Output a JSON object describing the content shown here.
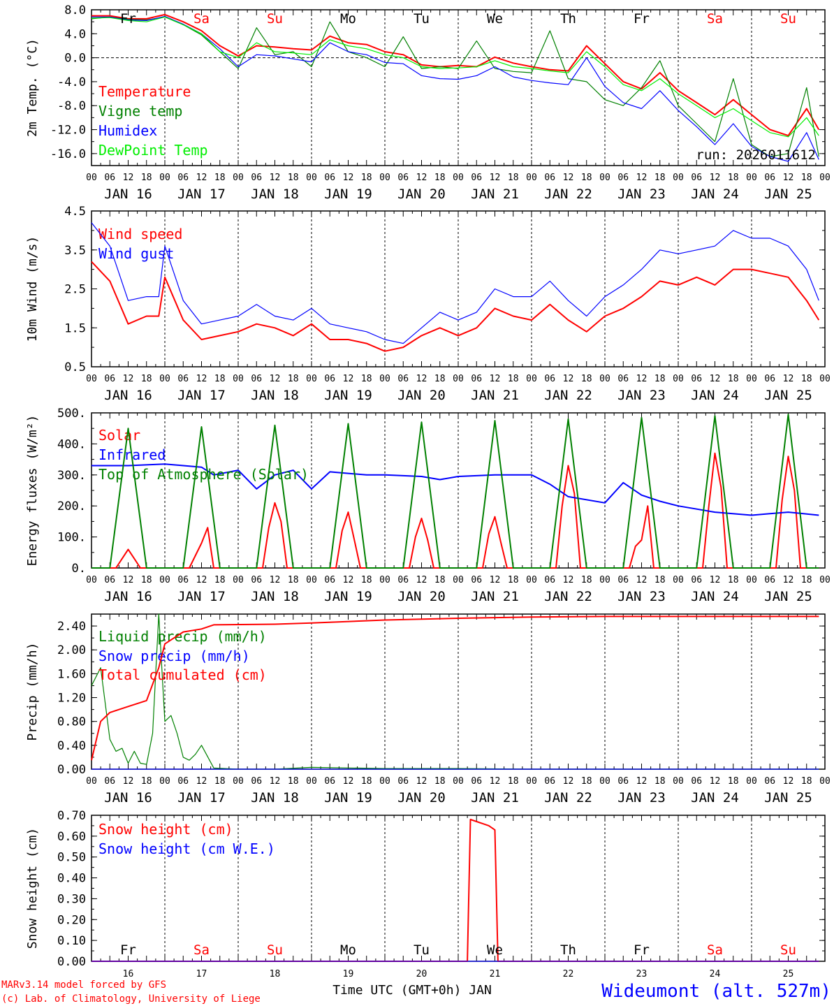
{
  "chart_data": [
    {
      "type": "line",
      "panel": "temperature",
      "ylabel": "2m Temp. (°C)",
      "ylim": [
        -18,
        8
      ],
      "yticks": [
        8,
        4,
        0,
        -4,
        -8,
        -12,
        -16
      ],
      "ytick_labels": [
        "8.0",
        "4.0",
        "0.0",
        "-4.0",
        "-8.0",
        "-12.0",
        "-16.0"
      ],
      "run_label": "run: 2026011612",
      "day_labels": [
        "Fr",
        "Sa",
        "Su",
        "Mo",
        "Tu",
        "We",
        "Th",
        "Fr",
        "Sa",
        "Su"
      ],
      "series": [
        {
          "name": "Temperature",
          "color": "#ff0000",
          "x": [
            0,
            6,
            12,
            18,
            24,
            30,
            36,
            42,
            48,
            54,
            60,
            66,
            72,
            78,
            84,
            90,
            96,
            102,
            108,
            114,
            120,
            126,
            132,
            138,
            144,
            150,
            156,
            162,
            168,
            174,
            180,
            186,
            192,
            198,
            204,
            210,
            216,
            222,
            228,
            234,
            238
          ],
          "y": [
            7.0,
            7.0,
            6.5,
            6.5,
            7.2,
            6.0,
            4.5,
            2.0,
            0.3,
            2.0,
            1.8,
            1.5,
            1.3,
            3.6,
            2.5,
            2.2,
            1.0,
            0.5,
            -1.2,
            -1.5,
            -1.3,
            -1.5,
            0.1,
            -0.9,
            -1.5,
            -2.0,
            -2.2,
            2.0,
            -1.0,
            -4.0,
            -5.2,
            -2.5,
            -5.5,
            -7.5,
            -9.5,
            -7.0,
            -9.5,
            -12.0,
            -13.0,
            -8.5,
            -12.0
          ]
        },
        {
          "name": "Vigne temp",
          "color": "#008000",
          "x": [
            0,
            6,
            12,
            18,
            24,
            30,
            36,
            42,
            48,
            54,
            60,
            66,
            72,
            78,
            84,
            90,
            96,
            102,
            108,
            114,
            120,
            126,
            132,
            138,
            144,
            150,
            156,
            162,
            168,
            174,
            180,
            186,
            192,
            198,
            204,
            210,
            216,
            222,
            228,
            234,
            238
          ],
          "y": [
            6.5,
            6.8,
            6.4,
            6.3,
            6.8,
            5.5,
            3.8,
            1.0,
            -1.8,
            5.0,
            0.5,
            1.0,
            -1.5,
            6.0,
            1.0,
            0.0,
            -1.5,
            3.5,
            -1.8,
            -1.5,
            -1.8,
            2.8,
            -1.8,
            -2.3,
            -2.5,
            4.5,
            -3.5,
            -4.0,
            -7.0,
            -8.0,
            -5.0,
            -0.5,
            -8.0,
            -11.0,
            -14.0,
            -3.5,
            -14.5,
            -16.5,
            -16.0,
            -5.0,
            -16.5
          ]
        },
        {
          "name": "Humidex",
          "color": "#0000ff",
          "x": [
            0,
            6,
            12,
            18,
            24,
            30,
            36,
            42,
            48,
            54,
            60,
            66,
            72,
            78,
            84,
            90,
            96,
            102,
            108,
            114,
            120,
            126,
            132,
            138,
            144,
            150,
            156,
            162,
            168,
            174,
            180,
            186,
            192,
            198,
            204,
            210,
            216,
            222,
            228,
            234,
            238
          ],
          "y": [
            6.8,
            6.8,
            6.3,
            6.2,
            6.9,
            5.6,
            4.0,
            1.5,
            -1.5,
            0.5,
            0.3,
            -0.2,
            -0.7,
            2.5,
            1.0,
            0.5,
            -0.8,
            -1.0,
            -3.0,
            -3.5,
            -3.6,
            -3.0,
            -1.5,
            -3.2,
            -3.8,
            -4.2,
            -4.5,
            0.0,
            -4.8,
            -7.5,
            -8.5,
            -5.5,
            -8.8,
            -11.5,
            -14.5,
            -11.0,
            -14.8,
            -16.5,
            -17.3,
            -12.5,
            -17.0
          ]
        },
        {
          "name": "DewPoint Temp",
          "color": "#00ee00",
          "x": [
            0,
            6,
            12,
            18,
            24,
            30,
            36,
            42,
            48,
            54,
            60,
            66,
            72,
            78,
            84,
            90,
            96,
            102,
            108,
            114,
            120,
            126,
            132,
            138,
            144,
            150,
            156,
            162,
            168,
            174,
            180,
            186,
            192,
            198,
            204,
            210,
            216,
            222,
            228,
            234,
            238
          ],
          "y": [
            6.6,
            6.7,
            6.2,
            6.0,
            6.8,
            5.5,
            4.0,
            1.0,
            0.0,
            2.5,
            1.0,
            0.8,
            0.5,
            3.0,
            2.0,
            1.5,
            0.5,
            0.0,
            -1.5,
            -1.8,
            -1.7,
            -1.5,
            -0.5,
            -1.5,
            -1.8,
            -2.2,
            -2.5,
            1.0,
            -1.5,
            -4.5,
            -5.5,
            -3.5,
            -6.0,
            -8.0,
            -10.0,
            -8.5,
            -10.5,
            -12.5,
            -13.2,
            -10.0,
            -13.0
          ]
        }
      ]
    },
    {
      "type": "line",
      "panel": "wind",
      "ylabel": "10m Wind (m/s)",
      "ylim": [
        0.5,
        4.5
      ],
      "yticks": [
        4.5,
        3.5,
        2.5,
        1.5,
        0.5
      ],
      "ytick_labels": [
        "4.5",
        "3.5",
        "2.5",
        "1.5",
        "0.5"
      ],
      "series": [
        {
          "name": "Wind speed",
          "color": "#ff0000",
          "x": [
            0,
            6,
            12,
            18,
            22,
            24,
            30,
            36,
            42,
            48,
            54,
            60,
            66,
            72,
            78,
            84,
            90,
            96,
            102,
            108,
            114,
            120,
            126,
            132,
            138,
            144,
            150,
            156,
            162,
            168,
            174,
            180,
            186,
            192,
            198,
            204,
            210,
            216,
            222,
            228,
            234,
            238
          ],
          "y": [
            3.2,
            2.7,
            1.6,
            1.8,
            1.8,
            2.8,
            1.7,
            1.2,
            1.3,
            1.4,
            1.6,
            1.5,
            1.3,
            1.6,
            1.2,
            1.2,
            1.1,
            0.9,
            1.0,
            1.3,
            1.5,
            1.3,
            1.5,
            2.0,
            1.8,
            1.7,
            2.1,
            1.7,
            1.4,
            1.8,
            2.0,
            2.3,
            2.7,
            2.6,
            2.8,
            2.6,
            3.0,
            3.0,
            2.9,
            2.8,
            2.2,
            1.7
          ]
        },
        {
          "name": "Wind gust",
          "color": "#0000ff",
          "x": [
            0,
            6,
            12,
            18,
            22,
            24,
            30,
            36,
            42,
            48,
            54,
            60,
            66,
            72,
            78,
            84,
            90,
            96,
            102,
            108,
            114,
            120,
            126,
            132,
            138,
            144,
            150,
            156,
            162,
            168,
            174,
            180,
            186,
            192,
            198,
            204,
            210,
            216,
            222,
            228,
            234,
            238
          ],
          "y": [
            4.2,
            3.6,
            2.2,
            2.3,
            2.3,
            3.6,
            2.2,
            1.6,
            1.7,
            1.8,
            2.1,
            1.8,
            1.7,
            2.0,
            1.6,
            1.5,
            1.4,
            1.2,
            1.1,
            1.5,
            1.9,
            1.7,
            1.9,
            2.5,
            2.3,
            2.3,
            2.7,
            2.2,
            1.8,
            2.3,
            2.6,
            3.0,
            3.5,
            3.4,
            3.5,
            3.6,
            4.0,
            3.8,
            3.8,
            3.6,
            3.0,
            2.2
          ]
        }
      ]
    },
    {
      "type": "line",
      "panel": "energy",
      "ylabel": "Energy fluxes (W/m²)",
      "ylim": [
        0,
        500
      ],
      "yticks": [
        500,
        400,
        300,
        200,
        100,
        0
      ],
      "ytick_labels": [
        "500.",
        "400.",
        "300.",
        "200.",
        "100.",
        "0."
      ],
      "series": [
        {
          "name": "Solar",
          "color": "#ff0000",
          "x": [
            0,
            8,
            10,
            12,
            14,
            16,
            18,
            32,
            36,
            38,
            40,
            56,
            58,
            60,
            62,
            64,
            80,
            82,
            84,
            86,
            88,
            104,
            106,
            108,
            110,
            112,
            128,
            130,
            132,
            134,
            136,
            152,
            154,
            156,
            158,
            160,
            176,
            178,
            180,
            182,
            184,
            200,
            202,
            204,
            206,
            208,
            224,
            226,
            228,
            230,
            232,
            238
          ],
          "y": [
            0,
            0,
            30,
            60,
            30,
            0,
            0,
            0,
            80,
            130,
            0,
            0,
            130,
            210,
            150,
            0,
            0,
            120,
            180,
            90,
            0,
            0,
            100,
            160,
            90,
            0,
            0,
            110,
            165,
            80,
            0,
            0,
            200,
            330,
            240,
            0,
            0,
            70,
            90,
            200,
            0,
            0,
            200,
            370,
            260,
            0,
            0,
            220,
            360,
            250,
            0,
            0
          ]
        },
        {
          "name": "Infrared",
          "color": "#0000ff",
          "x": [
            0,
            12,
            24,
            36,
            40,
            48,
            54,
            60,
            66,
            72,
            78,
            84,
            90,
            96,
            108,
            114,
            120,
            132,
            144,
            150,
            156,
            168,
            174,
            180,
            186,
            192,
            204,
            216,
            222,
            228,
            238
          ],
          "y": [
            330,
            330,
            335,
            325,
            300,
            315,
            255,
            300,
            315,
            255,
            310,
            305,
            300,
            300,
            295,
            285,
            295,
            300,
            300,
            270,
            230,
            210,
            275,
            235,
            215,
            200,
            180,
            170,
            175,
            180,
            170
          ]
        },
        {
          "name": "Top of Atmosphere (Solar)",
          "color": "#008000",
          "x": [
            0,
            6,
            12,
            18,
            30,
            36,
            42,
            54,
            60,
            66,
            78,
            84,
            90,
            102,
            108,
            114,
            126,
            132,
            138,
            150,
            156,
            162,
            174,
            180,
            186,
            198,
            204,
            210,
            222,
            228,
            234,
            238
          ],
          "y": [
            0,
            0,
            450,
            0,
            0,
            455,
            0,
            0,
            460,
            0,
            0,
            465,
            0,
            0,
            470,
            0,
            0,
            475,
            0,
            0,
            480,
            0,
            0,
            485,
            0,
            0,
            490,
            0,
            0,
            495,
            0,
            0
          ]
        }
      ]
    },
    {
      "type": "line",
      "panel": "precip",
      "ylabel": "Precip (mm/h)",
      "ylim": [
        0,
        2.6
      ],
      "yticks": [
        2.4,
        2.0,
        1.6,
        1.2,
        0.8,
        0.4,
        0.0
      ],
      "ytick_labels": [
        "2.40",
        "2.00",
        "1.60",
        "1.20",
        "0.80",
        "0.40",
        "0.00"
      ],
      "series": [
        {
          "name": "Liquid precip (mm/h)",
          "color": "#008000",
          "x": [
            0,
            3,
            6,
            8,
            10,
            12,
            14,
            16,
            18,
            20,
            22,
            24,
            26,
            28,
            30,
            32,
            34,
            36,
            40,
            48,
            60,
            72,
            96,
            120,
            144,
            168,
            192,
            216,
            238
          ],
          "y": [
            1.4,
            1.7,
            0.5,
            0.3,
            0.35,
            0.1,
            0.3,
            0.1,
            0.08,
            0.6,
            2.6,
            0.8,
            0.9,
            0.6,
            0.2,
            0.15,
            0.25,
            0.4,
            0.02,
            0.0,
            0.0,
            0.03,
            0.01,
            0.01,
            0.0,
            0.0,
            0.0,
            0.0,
            0.0
          ]
        },
        {
          "name": "Snow precip (mm/h)",
          "color": "#0000ff",
          "x": [
            0,
            238
          ],
          "y": [
            0.0,
            0.0
          ]
        },
        {
          "name": "Total cumulated (cm)",
          "color": "#ff0000",
          "x": [
            0,
            3,
            6,
            12,
            18,
            22,
            24,
            30,
            36,
            40,
            60,
            72,
            96,
            120,
            144,
            168,
            192,
            216,
            238
          ],
          "y": [
            0.15,
            0.8,
            0.95,
            1.05,
            1.15,
            1.7,
            2.1,
            2.3,
            2.35,
            2.42,
            2.43,
            2.45,
            2.5,
            2.53,
            2.55,
            2.56,
            2.56,
            2.56,
            2.56
          ]
        }
      ]
    },
    {
      "type": "line",
      "panel": "snow",
      "ylabel": "Snow height (cm)",
      "ylim": [
        0,
        0.7
      ],
      "yticks": [
        0.7,
        0.6,
        0.5,
        0.4,
        0.3,
        0.2,
        0.1,
        0.0
      ],
      "ytick_labels": [
        "0.70",
        "0.60",
        "0.50",
        "0.40",
        "0.30",
        "0.20",
        "0.10",
        "0.00"
      ],
      "series": [
        {
          "name": "Snow height (cm)",
          "color": "#ff0000",
          "x": [
            0,
            123,
            124,
            126,
            128,
            130,
            132,
            133,
            238
          ],
          "y": [
            0,
            0,
            0.68,
            0.67,
            0.66,
            0.65,
            0.63,
            0,
            0
          ]
        },
        {
          "name": "Snow height (cm W.E.)",
          "color": "#0000ff",
          "x": [
            0,
            238
          ],
          "y": [
            0,
            0
          ]
        }
      ]
    }
  ],
  "x_axis": {
    "hours_per_day": 24,
    "hour_ticks": [
      "00",
      "06",
      "12",
      "18"
    ],
    "final_tick": "00",
    "date_labels": [
      "JAN 16",
      "JAN 17",
      "JAN 18",
      "JAN 19",
      "JAN 20",
      "JAN 21",
      "JAN 22",
      "JAN 23",
      "JAN 24",
      "JAN 25"
    ],
    "bottom_day_numbers": [
      "16",
      "17",
      "18",
      "19",
      "20",
      "21",
      "22",
      "23",
      "24",
      "25"
    ],
    "bottom_day_names": [
      "Fr",
      "Sa",
      "Su",
      "Mo",
      "Tu",
      "We",
      "Th",
      "Fr",
      "Sa",
      "Su"
    ],
    "xlabel": "Time UTC (GMT+0h) JAN",
    "day_label_colors": [
      "#000000",
      "#ff0000",
      "#ff0000",
      "#000000",
      "#000000",
      "#000000",
      "#000000",
      "#000000",
      "#ff0000",
      "#ff0000"
    ]
  },
  "footer": {
    "credit_line1": "MARv3.14 model forced by GFS",
    "credit_line2": "(c) Lab. of Climatology, University of Liege",
    "station": "Wideumont (alt. 527m)",
    "credit_color": "#ff0000",
    "station_color": "#0000ff"
  }
}
